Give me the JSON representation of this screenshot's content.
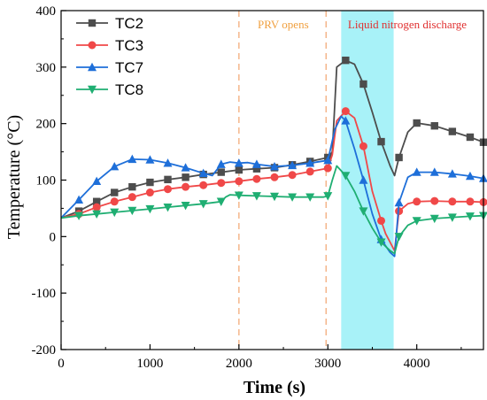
{
  "chart_data": {
    "type": "line",
    "title": "",
    "xlabel": "Time (s)",
    "ylabel": "Temperature (°C)",
    "xlim": [
      0,
      4750
    ],
    "ylim": [
      -200,
      400
    ],
    "xticks": [
      0,
      1000,
      2000,
      3000,
      4000
    ],
    "yticks": [
      -200,
      -100,
      0,
      100,
      200,
      300,
      400
    ],
    "grid": false,
    "legend_position": "top-left",
    "annotations": [
      {
        "name": "prv-opens",
        "type": "vline",
        "x": 2000,
        "color": "#f4b183",
        "label": "PRV opens",
        "label_color": "#f0a040"
      },
      {
        "name": "prv-second-line",
        "type": "vline",
        "x": 2980,
        "color": "#f4b183",
        "label": "",
        "label_color": "#f0a040"
      },
      {
        "name": "ln2-discharge",
        "type": "band",
        "x0": 3150,
        "x1": 3740,
        "color": "#a8f2f8",
        "label": "Liquid nitrogen discharge",
        "label_color": "#e03030"
      }
    ],
    "series": [
      {
        "name": "TC2",
        "color": "#4d4d4d",
        "marker": "square",
        "x": [
          0,
          200,
          400,
          600,
          800,
          1000,
          1200,
          1400,
          1600,
          1800,
          2000,
          2200,
          2400,
          2600,
          2800,
          3000,
          3050,
          3100,
          3200,
          3300,
          3400,
          3500,
          3600,
          3700,
          3750,
          3800,
          3900,
          4000,
          4200,
          4400,
          4600,
          4750
        ],
        "y": [
          33,
          45,
          62,
          78,
          88,
          96,
          101,
          105,
          110,
          114,
          118,
          120,
          122,
          127,
          133,
          140,
          150,
          300,
          312,
          305,
          270,
          220,
          168,
          125,
          108,
          140,
          185,
          201,
          196,
          186,
          176,
          167
        ],
        "markers_x": [
          200,
          400,
          600,
          800,
          1000,
          1200,
          1400,
          1600,
          1800,
          2000,
          2200,
          2400,
          2600,
          2800,
          3000,
          3200,
          3400,
          3600,
          3800,
          4000,
          4200,
          4400,
          4600,
          4750
        ]
      },
      {
        "name": "TC3",
        "color": "#f04848",
        "marker": "circle",
        "x": [
          0,
          200,
          400,
          600,
          800,
          1000,
          1200,
          1400,
          1600,
          1800,
          2000,
          2200,
          2400,
          2600,
          2800,
          3000,
          3050,
          3100,
          3200,
          3300,
          3400,
          3500,
          3600,
          3650,
          3750,
          3800,
          3900,
          4000,
          4200,
          4400,
          4600,
          4750
        ],
        "y": [
          33,
          40,
          52,
          62,
          70,
          78,
          84,
          88,
          91,
          95,
          98,
          102,
          105,
          109,
          115,
          121,
          145,
          205,
          222,
          210,
          160,
          80,
          28,
          5,
          -25,
          45,
          58,
          62,
          63,
          62,
          62,
          61
        ],
        "markers_x": [
          200,
          400,
          600,
          800,
          1000,
          1200,
          1400,
          1600,
          1800,
          2000,
          2200,
          2400,
          2600,
          2800,
          3000,
          3200,
          3400,
          3600,
          3800,
          4000,
          4200,
          4400,
          4600,
          4750
        ]
      },
      {
        "name": "TC7",
        "color": "#1e6fd9",
        "marker": "triangle-up",
        "x": [
          0,
          200,
          400,
          600,
          800,
          1000,
          1200,
          1400,
          1600,
          1700,
          1800,
          1900,
          2000,
          2100,
          2200,
          2400,
          2600,
          2800,
          3000,
          3080,
          3150,
          3200,
          3300,
          3400,
          3500,
          3600,
          3700,
          3750,
          3800,
          3900,
          4000,
          4200,
          4400,
          4600,
          4750
        ],
        "y": [
          33,
          65,
          98,
          124,
          137,
          136,
          130,
          122,
          112,
          108,
          128,
          132,
          130,
          131,
          128,
          124,
          126,
          130,
          135,
          190,
          213,
          205,
          155,
          100,
          40,
          -5,
          -28,
          -35,
          60,
          105,
          114,
          114,
          111,
          107,
          103
        ],
        "markers_x": [
          200,
          400,
          600,
          800,
          1000,
          1200,
          1400,
          1600,
          1800,
          2000,
          2200,
          2400,
          2600,
          2800,
          3000,
          3200,
          3400,
          3600,
          3800,
          4000,
          4200,
          4400,
          4600,
          4750
        ]
      },
      {
        "name": "TC8",
        "color": "#1fae72",
        "marker": "triangle-down",
        "x": [
          0,
          200,
          400,
          600,
          800,
          1000,
          1200,
          1400,
          1600,
          1800,
          1850,
          1900,
          2000,
          2200,
          2400,
          2600,
          2800,
          2950,
          3000,
          3050,
          3100,
          3200,
          3300,
          3400,
          3500,
          3600,
          3700,
          3750,
          3800,
          3900,
          4000,
          4200,
          4400,
          4600,
          4750
        ],
        "y": [
          33,
          37,
          40,
          43,
          46,
          49,
          52,
          55,
          58,
          62,
          70,
          74,
          73,
          72,
          71,
          70,
          70,
          70,
          72,
          100,
          125,
          108,
          80,
          45,
          15,
          -10,
          -25,
          -30,
          0,
          20,
          28,
          32,
          34,
          36,
          37
        ],
        "markers_x": [
          200,
          400,
          600,
          800,
          1000,
          1200,
          1400,
          1600,
          1800,
          2000,
          2200,
          2400,
          2600,
          2800,
          3000,
          3200,
          3400,
          3600,
          3800,
          4000,
          4200,
          4400,
          4600,
          4750
        ]
      }
    ]
  }
}
